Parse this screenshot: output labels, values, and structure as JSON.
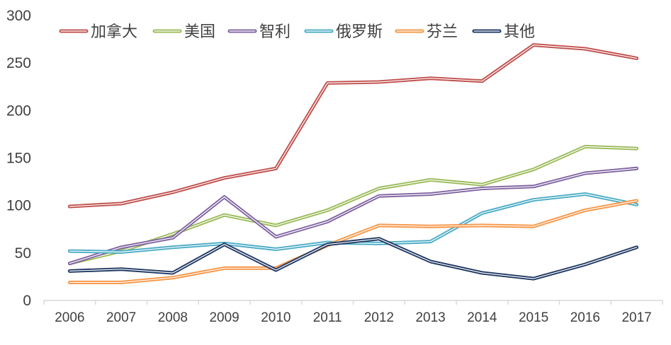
{
  "chart_data": {
    "type": "line",
    "categories": [
      "2006",
      "2007",
      "2008",
      "2009",
      "2010",
      "2011",
      "2012",
      "2013",
      "2014",
      "2015",
      "2016",
      "2017"
    ],
    "ylim": [
      0,
      300
    ],
    "yticks": [
      0,
      50,
      100,
      150,
      200,
      250,
      300
    ],
    "grid": false,
    "legend_position": "top-left",
    "series": [
      {
        "name": "加拿大",
        "color": "#C0504D",
        "values": [
          99,
          102,
          114,
          129,
          139,
          229,
          230,
          234,
          231,
          269,
          265,
          255
        ]
      },
      {
        "name": "美国",
        "color": "#9BBB59",
        "values": [
          39,
          52,
          70,
          90,
          79,
          95,
          118,
          127,
          122,
          138,
          162,
          160
        ]
      },
      {
        "name": "智利",
        "color": "#8064A2",
        "values": [
          39,
          56,
          66,
          109,
          67,
          83,
          110,
          112,
          118,
          120,
          134,
          139
        ]
      },
      {
        "name": "俄罗斯",
        "color": "#4BACC6",
        "values": [
          52,
          51,
          56,
          60,
          54,
          61,
          60,
          62,
          92,
          106,
          112,
          101
        ]
      },
      {
        "name": "芬兰",
        "color": "#F79646",
        "values": [
          19,
          19,
          24,
          34,
          34,
          58,
          79,
          78,
          79,
          78,
          95,
          105
        ]
      },
      {
        "name": "其他",
        "color": "#1F3864",
        "values": [
          31,
          33,
          29,
          59,
          32,
          59,
          65,
          41,
          29,
          23,
          38,
          56
        ]
      }
    ]
  }
}
